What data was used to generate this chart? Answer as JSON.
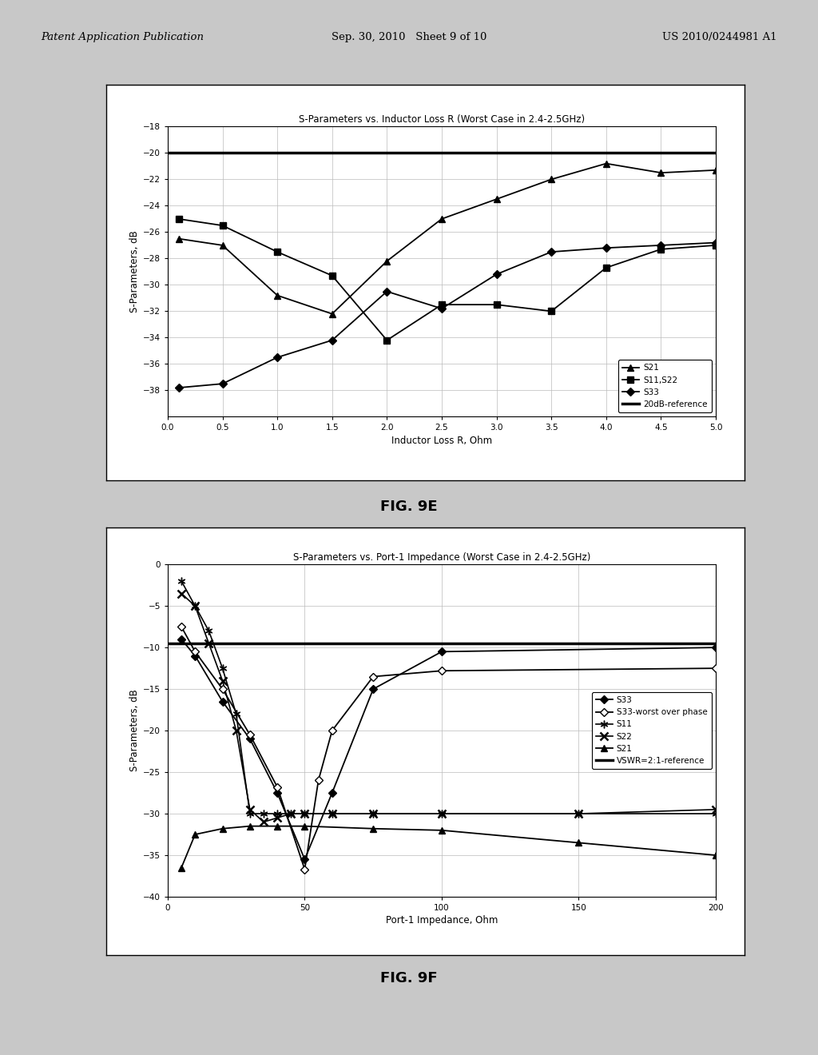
{
  "fig9e": {
    "title": "S-Parameters vs. Inductor Loss R (Worst Case in 2.4-2.5GHz)",
    "xlabel": "Inductor Loss R, Ohm",
    "ylabel": "S-Parameters, dB",
    "xlim": [
      0,
      5
    ],
    "ylim": [
      -40,
      -18
    ],
    "xticks": [
      0,
      0.5,
      1,
      1.5,
      2,
      2.5,
      3,
      3.5,
      4,
      4.5,
      5
    ],
    "yticks": [
      -38,
      -36,
      -34,
      -32,
      -30,
      -28,
      -26,
      -24,
      -22,
      -20,
      -18
    ],
    "ref_line_y": -20,
    "S21_x": [
      0.1,
      0.5,
      1.0,
      1.5,
      2.0,
      2.5,
      3.0,
      3.5,
      4.0,
      4.5,
      5.0
    ],
    "S21_y": [
      -26.5,
      -27.0,
      -30.8,
      -32.2,
      -28.2,
      -25.0,
      -23.5,
      -22.0,
      -20.8,
      -21.5,
      -21.3
    ],
    "S11S22_x": [
      0.1,
      0.5,
      1.0,
      1.5,
      2.0,
      2.5,
      3.0,
      3.5,
      4.0,
      4.5,
      5.0
    ],
    "S11S22_y": [
      -25.0,
      -25.5,
      -27.5,
      -29.3,
      -34.2,
      -31.5,
      -31.5,
      -32.0,
      -28.7,
      -27.3,
      -27.0
    ],
    "S33_x": [
      0.1,
      0.5,
      1.0,
      1.5,
      2.0,
      2.5,
      3.0,
      3.5,
      4.0,
      4.5,
      5.0
    ],
    "S33_y": [
      -37.8,
      -37.5,
      -35.5,
      -34.2,
      -30.5,
      -31.8,
      -29.2,
      -27.5,
      -27.2,
      -27.0,
      -26.8
    ],
    "figname": "FIG. 9E"
  },
  "fig9f": {
    "title": "S-Parameters vs. Port-1 Impedance (Worst Case in 2.4-2.5GHz)",
    "xlabel": "Port-1 Impedance, Ohm",
    "ylabel": "S-Parameters, dB",
    "xlim": [
      0,
      200
    ],
    "ylim": [
      -40,
      0
    ],
    "xticks": [
      0,
      50,
      100,
      150,
      200
    ],
    "yticks": [
      -40,
      -35,
      -30,
      -25,
      -20,
      -15,
      -10,
      -5,
      0
    ],
    "ref_line_y": -9.54,
    "S33_x": [
      5,
      10,
      20,
      30,
      40,
      50,
      60,
      75,
      100,
      200
    ],
    "S33_y": [
      -9.0,
      -11.0,
      -16.5,
      -21.0,
      -27.5,
      -35.5,
      -27.5,
      -15.0,
      -10.5,
      -10.0
    ],
    "S33worst_x": [
      5,
      10,
      20,
      30,
      40,
      50,
      55,
      60,
      75,
      100,
      200
    ],
    "S33worst_y": [
      -7.5,
      -10.5,
      -15.0,
      -20.5,
      -26.8,
      -36.7,
      -26.0,
      -20.0,
      -13.5,
      -12.8,
      -12.5
    ],
    "S11_x": [
      5,
      10,
      15,
      20,
      25,
      30,
      35,
      40,
      45,
      50,
      60,
      75,
      100,
      150,
      200
    ],
    "S11_y": [
      -2.0,
      -5.0,
      -8.0,
      -12.5,
      -18.0,
      -30.0,
      -30.0,
      -30.0,
      -30.0,
      -30.0,
      -30.0,
      -30.0,
      -30.0,
      -30.0,
      -30.0
    ],
    "S22_x": [
      5,
      10,
      15,
      20,
      25,
      30,
      35,
      40,
      45,
      50,
      60,
      75,
      100,
      150,
      200
    ],
    "S22_y": [
      -3.5,
      -5.0,
      -9.5,
      -14.0,
      -20.0,
      -29.5,
      -31.0,
      -30.5,
      -30.0,
      -30.0,
      -30.0,
      -30.0,
      -30.0,
      -30.0,
      -29.5
    ],
    "S21_x": [
      5,
      10,
      20,
      30,
      40,
      50,
      75,
      100,
      150,
      200
    ],
    "S21_y": [
      -36.5,
      -32.5,
      -31.8,
      -31.5,
      -31.5,
      -31.5,
      -31.8,
      -32.0,
      -33.5,
      -35.0
    ],
    "figname": "FIG. 9F"
  },
  "header": {
    "left": "Patent Application Publication",
    "center": "Sep. 30, 2010   Sheet 9 of 10",
    "right": "US 2010/0244981 A1"
  },
  "page_bg": "#c8c8c8",
  "panel_bg": "#e8e8e8",
  "plot_bg": "#ffffff",
  "grid_color": "#bbbbbb"
}
